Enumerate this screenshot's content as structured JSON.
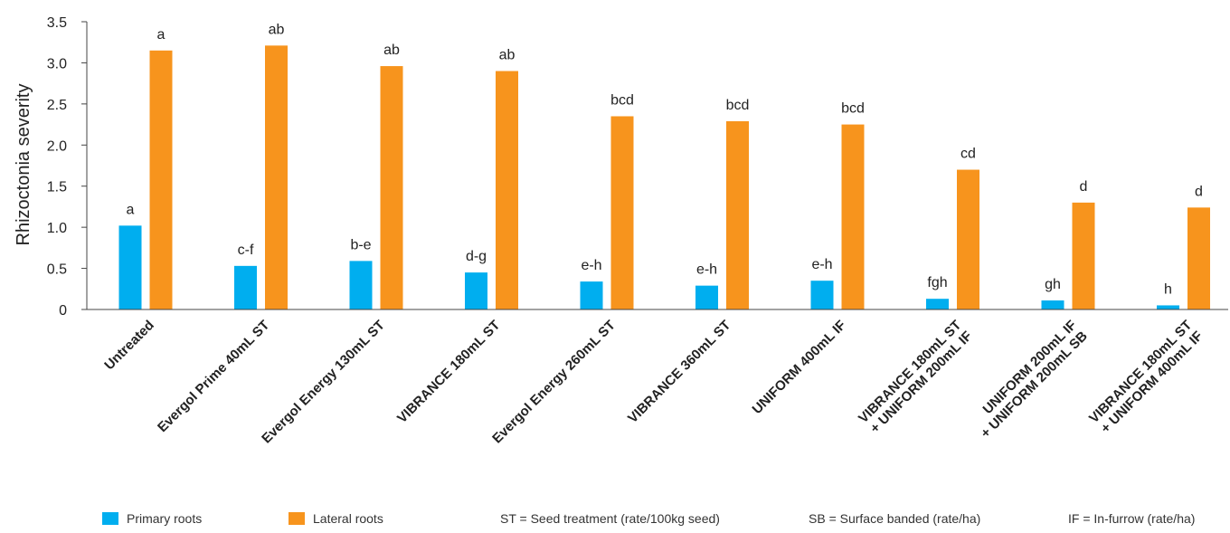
{
  "chart_data": {
    "type": "bar",
    "ylabel": "Rhizoctonia severity",
    "xlabel": "",
    "ylim": [
      0,
      3.5
    ],
    "yticks": [
      "0",
      "0.5",
      "1.0",
      "1.5",
      "2.0",
      "2.5",
      "3.0",
      "3.5"
    ],
    "grid": false,
    "legend_position": "bottom",
    "categories": [
      [
        "Untreated"
      ],
      [
        "Evergol Prime 40mL ST"
      ],
      [
        "Evergol Energy 130mL ST"
      ],
      [
        "VIBRANCE 180mL ST"
      ],
      [
        "Evergol Energy 260mL ST"
      ],
      [
        "VIBRANCE 360mL ST"
      ],
      [
        "UNIFORM 400mL IF"
      ],
      [
        "VIBRANCE 180mL ST",
        "+ UNIFORM 200mL IF"
      ],
      [
        "UNIFORM 200mL IF",
        "+ UNIFORM 200mL SB"
      ],
      [
        "VIBRANCE 180mL ST",
        "+ UNIFORM 400mL IF"
      ]
    ],
    "series": [
      {
        "name": "Primary roots",
        "color": "#00aeef",
        "values": [
          1.02,
          0.53,
          0.59,
          0.45,
          0.34,
          0.29,
          0.35,
          0.13,
          0.11,
          0.05
        ],
        "labels": [
          "a",
          "c-f",
          "b-e",
          "d-g",
          "e-h",
          "e-h",
          "e-h",
          "fgh",
          "gh",
          "h"
        ]
      },
      {
        "name": "Lateral roots",
        "color": "#f7941d",
        "values": [
          3.15,
          3.21,
          2.96,
          2.9,
          2.35,
          2.29,
          2.25,
          1.7,
          1.3,
          1.24
        ],
        "labels": [
          "a",
          "ab",
          "ab",
          "ab",
          "bcd",
          "bcd",
          "bcd",
          "cd",
          "d",
          "d"
        ]
      }
    ],
    "notes": [
      "ST = Seed treatment (rate/100kg seed)",
      "SB = Surface banded (rate/ha)",
      "IF = In-furrow (rate/ha)"
    ]
  }
}
